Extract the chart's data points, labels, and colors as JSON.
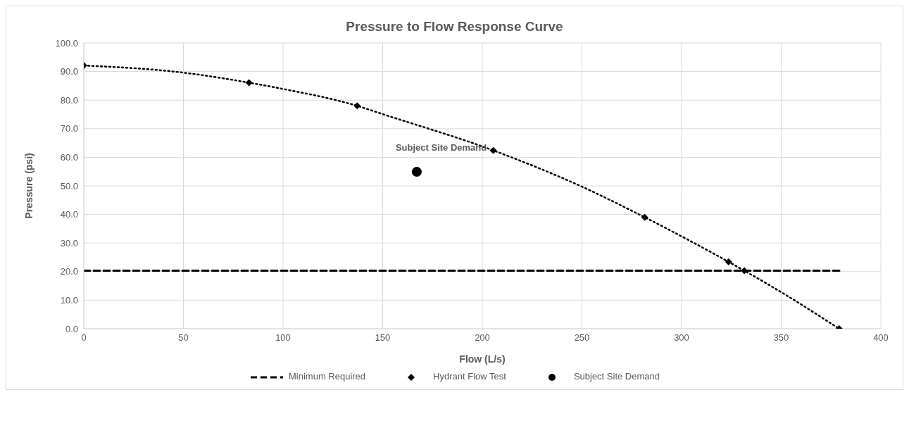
{
  "chart_data": {
    "type": "scatter",
    "title": "Pressure to Flow Response Curve",
    "xlabel": "Flow (L/s)",
    "ylabel": "Pressure (psi)",
    "xlim": [
      0,
      400
    ],
    "xticks": [
      0,
      50,
      100,
      150,
      200,
      250,
      300,
      350,
      400
    ],
    "ylim": [
      0,
      100
    ],
    "yticks": [
      {
        "value": 0,
        "label": "0.0"
      },
      {
        "value": 10,
        "label": "10.0"
      },
      {
        "value": 20,
        "label": "20.0"
      },
      {
        "value": 30,
        "label": "30.0"
      },
      {
        "value": 40,
        "label": "40.0"
      },
      {
        "value": 50,
        "label": "50.0"
      },
      {
        "value": 60,
        "label": "60.0"
      },
      {
        "value": 70,
        "label": "70.0"
      },
      {
        "value": 80,
        "label": "80.0"
      },
      {
        "value": 90,
        "label": "90.0"
      },
      {
        "value": 100,
        "label": "100.0"
      }
    ],
    "grid": true,
    "legend": "bottom",
    "annotations": [
      {
        "text": "Subject Site Demand",
        "x": 167.1,
        "y": 54.9
      }
    ],
    "series": [
      {
        "name": "Minimum Required",
        "type": "line",
        "x": [
          0,
          380
        ],
        "values": [
          20.3,
          20.3
        ],
        "color": "#000000",
        "line_style": "dashed",
        "marker": "none"
      },
      {
        "name": "Hydrant Flow Test",
        "x": [
          0,
          82.9,
          137.2,
          205.5,
          281.5,
          323.6,
          331.5,
          379.1
        ],
        "values": [
          92.1,
          86.1,
          78.0,
          62.4,
          39.0,
          23.4,
          20.3,
          0
        ],
        "color": "#000000",
        "marker": "diamond"
      },
      {
        "name": "Subject Site Demand",
        "x": [
          167.1
        ],
        "values": [
          54.9
        ],
        "color": "#000000",
        "marker": "circle"
      },
      {
        "type": "line",
        "x": [
          0,
          50,
          82.9,
          100,
          137.2,
          150,
          205.5,
          250,
          281.5,
          323.6,
          331.5,
          350,
          379.1
        ],
        "values": [
          92.1,
          89.6,
          86.1,
          83.9,
          78.0,
          75.1,
          62.4,
          49.7,
          39.0,
          23.4,
          20.3,
          12.8,
          0
        ],
        "color": "#000000",
        "line_style": "dotted",
        "marker": "none"
      }
    ]
  }
}
